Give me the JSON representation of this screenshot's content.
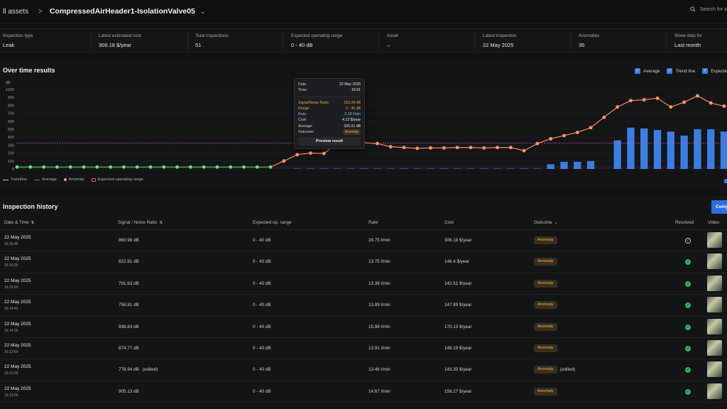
{
  "header": {
    "breadcrumb_back": "ll assets",
    "separator": ">",
    "asset_title": "CompressedAirHeader1-IsolationValve05",
    "search_placeholder": "Search for a"
  },
  "summary": [
    {
      "label": "Inspection type",
      "value": "Leak"
    },
    {
      "label": "Latest estimated cost",
      "value": "306.18 $/year"
    },
    {
      "label": "Total inspections",
      "value": "51"
    },
    {
      "label": "Expected operating range",
      "value": "0 - 40 dB"
    },
    {
      "label": "Asset",
      "value": "–"
    },
    {
      "label": "Latest inspection",
      "value": "22 May 2025"
    },
    {
      "label": "Anomalies",
      "value": "35"
    },
    {
      "label": "Show data for",
      "value": "Last month"
    }
  ],
  "chart_panel": {
    "title": "Over time results",
    "toggles": [
      "Average",
      "Trend line",
      "Expecte"
    ],
    "legend": [
      "Trendline",
      "Average",
      "Anomaly",
      "Expected operating range"
    ]
  },
  "chart_data": {
    "type": "line",
    "ylabel": "dB",
    "ylim": [
      0,
      1000
    ],
    "yticks": [
      0,
      100,
      200,
      300,
      400,
      500,
      600,
      700,
      800,
      900,
      1000
    ],
    "average_db": 325.01,
    "expected_range_db": [
      0,
      40
    ],
    "series": [
      {
        "type": "line",
        "values": [
          25,
          25,
          25,
          25,
          25,
          25,
          25,
          25,
          25,
          25,
          25,
          25,
          25,
          25,
          25,
          25,
          25,
          25,
          25,
          25,
          100,
          180,
          200,
          195,
          320,
          325,
          330,
          320,
          280,
          270,
          260,
          265,
          265,
          270,
          270,
          265,
          270,
          270,
          230,
          320,
          380,
          420,
          460,
          520,
          650,
          780,
          860,
          870,
          890,
          780,
          840,
          920,
          830,
          790
        ]
      },
      {
        "type": "bar",
        "values": [
          0,
          0,
          0,
          0,
          0,
          0,
          0,
          0,
          0,
          0,
          0,
          0,
          0,
          0,
          0,
          0,
          0,
          0,
          0,
          0,
          0,
          5,
          5,
          5,
          5,
          5,
          5,
          5,
          5,
          5,
          5,
          5,
          5,
          5,
          5,
          5,
          5,
          5,
          5,
          5,
          60,
          90,
          90,
          100,
          0,
          360,
          520,
          510,
          490,
          470,
          420,
          500,
          500,
          470
        ]
      }
    ]
  },
  "tooltip": {
    "rows1": [
      {
        "k": "Date:",
        "v": "22 May 2025"
      },
      {
        "k": "Time:",
        "v": "16:01"
      }
    ],
    "rows2": [
      {
        "k": "Signal/Noise Ratio:",
        "v": "153.28 dB"
      },
      {
        "k": "Range:",
        "v": "0 - 40 dB"
      },
      {
        "k": "Rate:",
        "v": "0.39 l/min"
      },
      {
        "k": "Cost:",
        "v": "4.13 $/year"
      },
      {
        "k": "Average:",
        "v": "325.01 dB"
      }
    ],
    "outcome_label": "Outcome:",
    "outcome_value": "Anomaly",
    "button": "Preview result"
  },
  "history": {
    "title": "Inspection history",
    "compare_button": "Comp",
    "columns": [
      "Date & Time",
      "Signal / Noise Ratio",
      "Expected op. range",
      "Rate",
      "Cost",
      "Outcome",
      "Resolved",
      "Video"
    ],
    "rows": [
      {
        "date": "22 May 2025",
        "time": "16:15:49",
        "snr": "860.96 dB",
        "range": "0 - 40 dB",
        "rate": "28.75 l/min",
        "cost": "306.18 $/year",
        "outcome": "Anomaly",
        "note": "",
        "resolved": false
      },
      {
        "date": "22 May 2025",
        "time": "16:15:29",
        "snr": "822.91 dB",
        "range": "0 - 40 dB",
        "rate": "13.75 l/min",
        "cost": "146.4 $/year",
        "outcome": "Anomaly",
        "note": "",
        "resolved": true
      },
      {
        "date": "22 May 2025",
        "time": "16:15:03",
        "snr": "791.63 dB",
        "range": "0 - 40 dB",
        "rate": "13.38 l/min",
        "cost": "142.51 $/year",
        "outcome": "Anomaly",
        "note": "",
        "resolved": true
      },
      {
        "date": "22 May 2025",
        "time": "16:14:42",
        "snr": "758.81 dB",
        "range": "0 - 40 dB",
        "rate": "13.89 l/min",
        "cost": "147.89 $/year",
        "outcome": "Anomaly",
        "note": "",
        "resolved": true
      },
      {
        "date": "22 May 2025",
        "time": "16:14:16",
        "snr": "938.83 dB",
        "range": "0 - 40 dB",
        "rate": "15.98 l/min",
        "cost": "170.13 $/year",
        "outcome": "Anomaly",
        "note": "",
        "resolved": true
      },
      {
        "date": "22 May 2025",
        "time": "16:13:50",
        "snr": "874.77 dB",
        "range": "0 - 40 dB",
        "rate": "13.91 l/min",
        "cost": "148.19 $/year",
        "outcome": "Anomaly",
        "note": "",
        "resolved": true
      },
      {
        "date": "22 May 2025",
        "time": "16:13:30",
        "snr": "778.94 dB",
        "snr_note": "(edited)",
        "range": "0 - 40 dB",
        "rate": "13.46 l/min",
        "cost": "143.35 $/year",
        "outcome": "Anomaly",
        "note": "(edited)",
        "resolved": true
      },
      {
        "date": "22 May 2025",
        "time": "16:13:04",
        "snr": "905.13 dB",
        "range": "0 - 40 dB",
        "rate": "14.67 l/min",
        "cost": "156.27 $/year",
        "outcome": "Anomaly",
        "note": "",
        "resolved": true
      }
    ]
  },
  "colors": {
    "accent": "#3b7ee0",
    "trend": "#ff8a5c",
    "normal": "#4cd964",
    "average": "#c05cc0",
    "anomaly_badge_text": "#e9b25a",
    "resolved": "#29b45a"
  }
}
